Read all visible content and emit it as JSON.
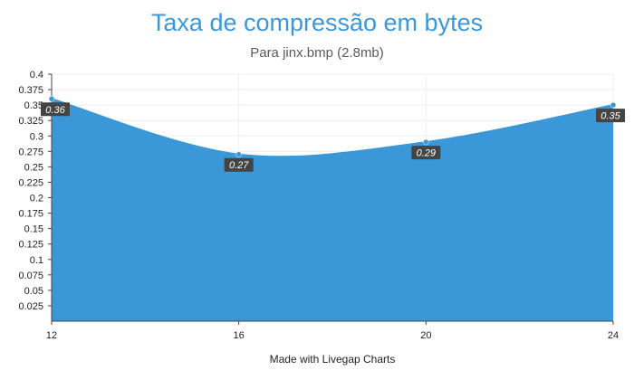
{
  "chart_data": {
    "type": "area",
    "title": "Taxa de compressão em bytes",
    "subtitle": "Para jinx.bmp (2.8mb)",
    "xlabel": "",
    "ylabel": "",
    "x": [
      12,
      16,
      20,
      24
    ],
    "series": [
      {
        "values": [
          0.36,
          0.27,
          0.29,
          0.35
        ],
        "labels": [
          "0.36",
          "0.27",
          "0.29",
          "0.35"
        ]
      }
    ],
    "xlim": [
      12,
      24
    ],
    "ylim": [
      0,
      0.4
    ],
    "x_ticks": [
      "12",
      "16",
      "20",
      "24"
    ],
    "y_ticks": [
      "0.025",
      "0.05",
      "0.075",
      "0.1",
      "0.125",
      "0.15",
      "0.175",
      "0.2",
      "0.225",
      "0.25",
      "0.275",
      "0.3",
      "0.325",
      "0.35",
      "0.375",
      "0.4"
    ],
    "grid": true,
    "fill_color": "#3a98d9",
    "line_color": "#3a98d9",
    "label_bg": "#444444"
  },
  "footer": {
    "text": "Made with Livegap Charts"
  }
}
